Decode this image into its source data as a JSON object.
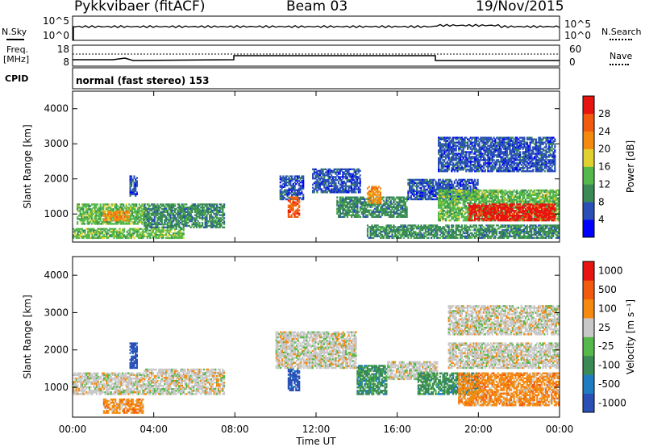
{
  "header": {
    "station": "Pykkvibaer (fitACF)",
    "beam": "Beam 03",
    "date": "19/Nov/2015"
  },
  "ancillary": {
    "nsky_label": "N.Sky",
    "nsearch_label": "N.Search",
    "freq_label_top": "Freq.",
    "freq_label_bottom": "[MHz]",
    "nave_label": "Nave",
    "cpid_label": "CPID",
    "cpid_value": "normal (fast stereo) 153",
    "noise_ticks_left": [
      "10^5",
      "10^0"
    ],
    "noise_ticks_right": [
      "10^5",
      "10^0"
    ],
    "freq_ticks_left": [
      "18",
      "8"
    ],
    "nave_ticks_right": [
      "60",
      "0"
    ]
  },
  "colors": {
    "power": [
      "#0000ff",
      "#2a50b8",
      "#3a8a56",
      "#55b84a",
      "#e0d030",
      "#f58a10",
      "#f25a10",
      "#e81410"
    ],
    "velocity": [
      "#2a50b8",
      "#1e7dc0",
      "#3a8a56",
      "#55b84a",
      "#c8c8c8",
      "#f58a10",
      "#f25a10",
      "#e81410"
    ]
  },
  "chart_data": [
    {
      "type": "heatmap",
      "name": "power",
      "ylabel": "Slant Range [km]",
      "yticks": [
        "1000",
        "2000",
        "3000",
        "4000"
      ],
      "ylim": [
        200,
        4500
      ],
      "xlim": [
        0,
        24
      ],
      "xticks": [
        "00:00",
        "04:00",
        "08:00",
        "12:00",
        "16:00",
        "20:00",
        "00:00"
      ],
      "colorbar": {
        "label": "Power [dB]",
        "ticks": [
          "4",
          "8",
          "12",
          "16",
          "20",
          "24",
          "28"
        ]
      },
      "regions": [
        {
          "x": [
            0.0,
            5.5
          ],
          "y": [
            300,
            600
          ],
          "level": 3
        },
        {
          "x": [
            0.2,
            3.6
          ],
          "y": [
            700,
            1300
          ],
          "level": 3
        },
        {
          "x": [
            1.5,
            2.8
          ],
          "y": [
            800,
            1100
          ],
          "level": 5
        },
        {
          "x": [
            3.5,
            7.5
          ],
          "y": [
            600,
            1300
          ],
          "level": 2
        },
        {
          "x": [
            2.8,
            3.2
          ],
          "y": [
            1500,
            2100
          ],
          "level": 1
        },
        {
          "x": [
            10.2,
            11.4
          ],
          "y": [
            1400,
            2100
          ],
          "level": 1
        },
        {
          "x": [
            10.6,
            11.2
          ],
          "y": [
            900,
            1500
          ],
          "level": 6
        },
        {
          "x": [
            11.8,
            14.2
          ],
          "y": [
            1600,
            2300
          ],
          "level": 1
        },
        {
          "x": [
            13.0,
            16.5
          ],
          "y": [
            900,
            1500
          ],
          "level": 2
        },
        {
          "x": [
            14.5,
            15.2
          ],
          "y": [
            1300,
            1800
          ],
          "level": 5
        },
        {
          "x": [
            16.5,
            20.0
          ],
          "y": [
            1400,
            2000
          ],
          "level": 1
        },
        {
          "x": [
            18.0,
            24.0
          ],
          "y": [
            800,
            1700
          ],
          "level": 3
        },
        {
          "x": [
            19.5,
            23.8
          ],
          "y": [
            800,
            1300
          ],
          "level": 7
        },
        {
          "x": [
            18.0,
            23.8
          ],
          "y": [
            2200,
            3200
          ],
          "level": 1
        },
        {
          "x": [
            14.5,
            24.0
          ],
          "y": [
            300,
            700
          ],
          "level": 2
        }
      ]
    },
    {
      "type": "heatmap",
      "name": "velocity",
      "ylabel": "Slant Range [km]",
      "yticks": [
        "1000",
        "2000",
        "3000",
        "4000"
      ],
      "ylim": [
        200,
        4500
      ],
      "xlim": [
        0,
        24
      ],
      "xlabel": "Time UT",
      "xticks": [
        "00:00",
        "04:00",
        "08:00",
        "12:00",
        "16:00",
        "20:00",
        "00:00"
      ],
      "colorbar": {
        "label": "Velocity [m s⁻¹]",
        "ticks": [
          "1000",
          "500",
          "100",
          "25",
          "-25",
          "-100",
          "-500",
          "-1000"
        ]
      },
      "regions": [
        {
          "x": [
            0.0,
            3.5
          ],
          "y": [
            800,
            1400
          ],
          "level": 4
        },
        {
          "x": [
            1.5,
            3.5
          ],
          "y": [
            300,
            700
          ],
          "level": 5
        },
        {
          "x": [
            3.5,
            7.5
          ],
          "y": [
            800,
            1500
          ],
          "level": 4
        },
        {
          "x": [
            2.8,
            3.2
          ],
          "y": [
            1500,
            2200
          ],
          "level": 0
        },
        {
          "x": [
            10.0,
            14.0
          ],
          "y": [
            1500,
            2500
          ],
          "level": 4
        },
        {
          "x": [
            10.6,
            11.2
          ],
          "y": [
            900,
            1500
          ],
          "level": 0
        },
        {
          "x": [
            14.0,
            15.5
          ],
          "y": [
            800,
            1600
          ],
          "level": 2
        },
        {
          "x": [
            15.5,
            18.0
          ],
          "y": [
            1200,
            1700
          ],
          "level": 4
        },
        {
          "x": [
            17.0,
            20.0
          ],
          "y": [
            800,
            1400
          ],
          "level": 2
        },
        {
          "x": [
            19.0,
            24.0
          ],
          "y": [
            500,
            1400
          ],
          "level": 5
        },
        {
          "x": [
            18.5,
            24.0
          ],
          "y": [
            1500,
            2200
          ],
          "level": 4
        },
        {
          "x": [
            18.5,
            24.0
          ],
          "y": [
            2400,
            3200
          ],
          "level": 4
        }
      ]
    }
  ]
}
